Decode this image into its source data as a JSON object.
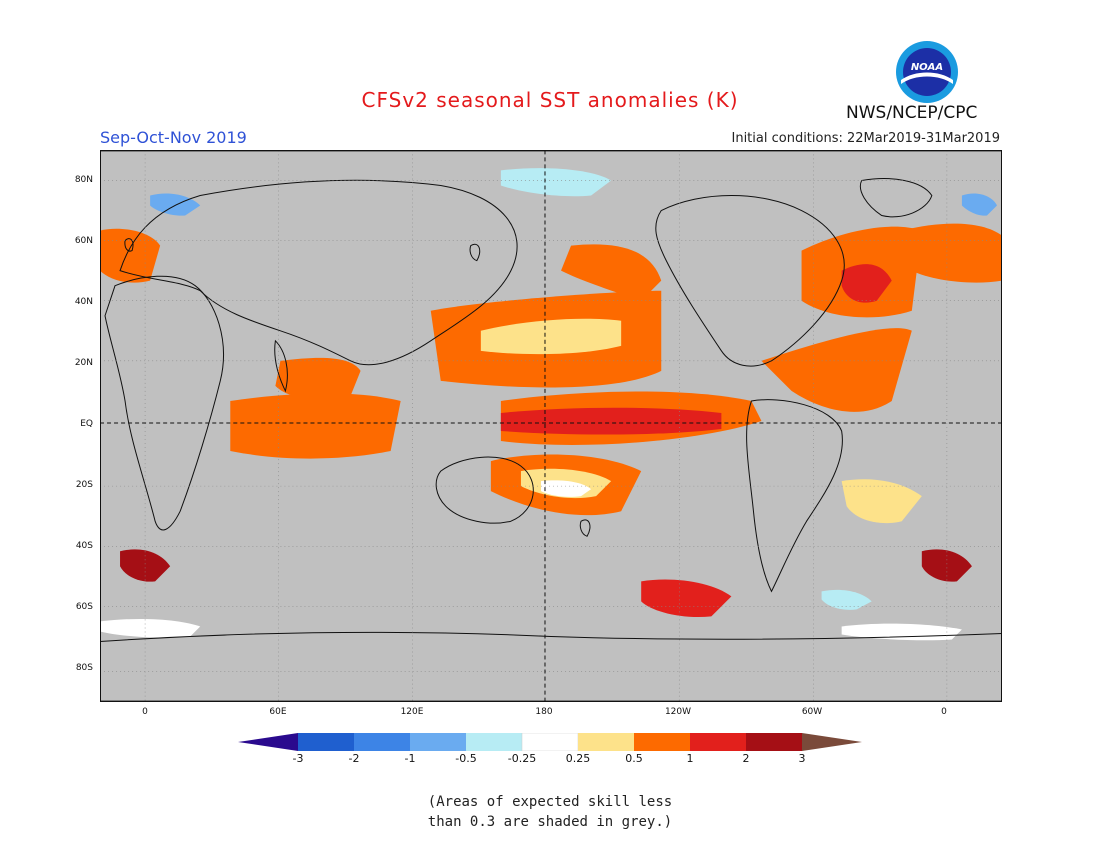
{
  "header": {
    "title": "CFSv2 seasonal SST anomalies (K)",
    "season": "Sep-Oct-Nov 2019",
    "initial_conditions": "Initial conditions: 22Mar2019-31Mar2019",
    "organization": "NWS/NCEP/CPC",
    "logo_text": "NOAA"
  },
  "map": {
    "projection": "equirectangular",
    "center_meridian": "180",
    "lat_labels": [
      "80N",
      "60N",
      "40N",
      "20N",
      "EQ",
      "20S",
      "40S",
      "60S",
      "80S"
    ],
    "lon_labels": [
      "0",
      "60E",
      "120E",
      "180",
      "120W",
      "60W",
      "0"
    ],
    "masked_color": "#c0c0c0",
    "grid": "dotted",
    "reference_lines": [
      "equator",
      "dateline"
    ]
  },
  "colorbar": {
    "ticks": [
      "-3",
      "-2",
      "-1",
      "-0.5",
      "-0.25",
      "0.25",
      "0.5",
      "1",
      "2",
      "3"
    ],
    "colors": [
      "#2a0a8e",
      "#1f5fcf",
      "#3d84e6",
      "#6aabf0",
      "#b7ecf4",
      "#ffffff",
      "#fde28a",
      "#fd6a00",
      "#e2201c",
      "#a50f15",
      "#7a4a3a"
    ]
  },
  "note": {
    "line1": "(Areas of expected skill less",
    "line2": "than 0.3 are shaded in grey.)"
  }
}
